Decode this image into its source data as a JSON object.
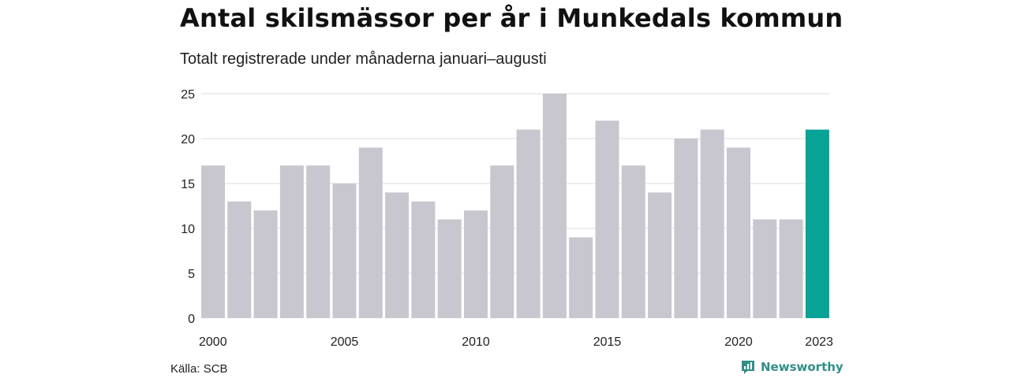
{
  "header": {
    "title": "Antal skilsmässor per år i Munkedals kommun",
    "subtitle": "Totalt registrerade under månaderna januari–augusti"
  },
  "footer": {
    "source": "Källa: SCB",
    "brand": "Newsworthy"
  },
  "colors": {
    "bar_default": "#c8c7cf",
    "bar_highlight": "#06a396",
    "gridline": "#dddddd",
    "brand": "#2f8f86"
  },
  "icons": {
    "brand": "newsworthy-logo-icon"
  },
  "chart_data": {
    "type": "bar",
    "categories": [
      "2000",
      "2001",
      "2002",
      "2003",
      "2004",
      "2005",
      "2006",
      "2007",
      "2008",
      "2009",
      "2010",
      "2011",
      "2012",
      "2013",
      "2014",
      "2015",
      "2016",
      "2017",
      "2018",
      "2019",
      "2020",
      "2021",
      "2022",
      "2023"
    ],
    "values": [
      17,
      13,
      12,
      17,
      17,
      15,
      19,
      14,
      13,
      11,
      12,
      17,
      21,
      25,
      9,
      22,
      17,
      14,
      20,
      21,
      19,
      11,
      11,
      21
    ],
    "x_tick_labels": [
      "2000",
      "2005",
      "2010",
      "2015",
      "2020",
      "2023"
    ],
    "y_ticks": [
      0,
      5,
      10,
      15,
      20,
      25
    ],
    "ylim": [
      0,
      25
    ],
    "highlight_category": "2023",
    "grid": true,
    "title": "Antal skilsmässor per år i Munkedals kommun",
    "subtitle": "Totalt registrerade under månaderna januari–augusti",
    "xlabel": "",
    "ylabel": ""
  }
}
